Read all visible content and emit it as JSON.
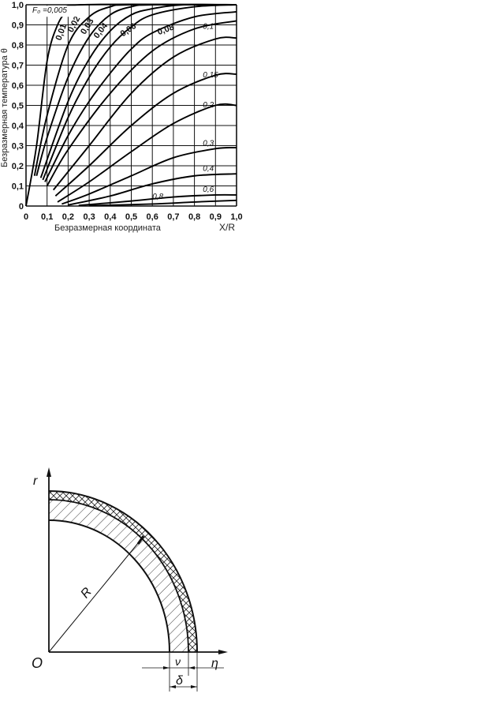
{
  "chart_data": {
    "type": "line",
    "title": "",
    "xlabel": "Безразмерная координата",
    "xunit_label": "X/R",
    "ylabel": "Безразмерная температура θ",
    "xlim": [
      0,
      1.0
    ],
    "ylim": [
      0,
      1.0
    ],
    "grid": true,
    "x_ticks": [
      "0",
      "0,1",
      "0,2",
      "0,3",
      "0,4",
      "0,5",
      "0,6",
      "0,7",
      "0,8",
      "0,9",
      "1,0"
    ],
    "y_ticks": [
      "0",
      "0,1",
      "0,2",
      "0,3",
      "0,4",
      "0,5",
      "0,6",
      "0,7",
      "0,8",
      "0,9",
      "1,0"
    ],
    "series": [
      {
        "name": "F₀ =0,005",
        "points": [
          [
            0,
            0
          ],
          [
            0.05,
            0.3
          ],
          [
            0.1,
            0.72
          ],
          [
            0.15,
            0.9
          ],
          [
            0.2,
            0.97
          ],
          [
            0.27,
            1.0
          ],
          [
            1,
            1.0
          ]
        ]
      },
      {
        "name": "0,01",
        "points": [
          [
            0.04,
            0.15
          ],
          [
            0.1,
            0.45
          ],
          [
            0.2,
            0.8
          ],
          [
            0.3,
            0.94
          ],
          [
            0.4,
            0.99
          ],
          [
            0.5,
            1.0
          ],
          [
            1,
            1.0
          ]
        ]
      },
      {
        "name": "0,02",
        "points": [
          [
            0.05,
            0.15
          ],
          [
            0.1,
            0.34
          ],
          [
            0.2,
            0.64
          ],
          [
            0.3,
            0.84
          ],
          [
            0.4,
            0.95
          ],
          [
            0.5,
            0.99
          ],
          [
            0.6,
            1.0
          ],
          [
            1,
            1.0
          ]
        ]
      },
      {
        "name": "0,03",
        "points": [
          [
            0.07,
            0.14
          ],
          [
            0.2,
            0.52
          ],
          [
            0.3,
            0.73
          ],
          [
            0.4,
            0.87
          ],
          [
            0.5,
            0.95
          ],
          [
            0.6,
            0.98
          ],
          [
            0.75,
            1.0
          ],
          [
            1,
            1.0
          ]
        ]
      },
      {
        "name": "0,04",
        "points": [
          [
            0.08,
            0.13
          ],
          [
            0.2,
            0.44
          ],
          [
            0.3,
            0.64
          ],
          [
            0.4,
            0.79
          ],
          [
            0.5,
            0.89
          ],
          [
            0.6,
            0.95
          ],
          [
            0.8,
            0.99
          ],
          [
            1,
            1.0
          ]
        ]
      },
      {
        "name": "0,06",
        "points": [
          [
            0.09,
            0.12
          ],
          [
            0.2,
            0.35
          ],
          [
            0.3,
            0.52
          ],
          [
            0.4,
            0.66
          ],
          [
            0.5,
            0.78
          ],
          [
            0.6,
            0.86
          ],
          [
            0.8,
            0.94
          ],
          [
            1,
            0.965
          ]
        ]
      },
      {
        "name": "0,08",
        "points": [
          [
            0.1,
            0.1
          ],
          [
            0.2,
            0.28
          ],
          [
            0.4,
            0.56
          ],
          [
            0.6,
            0.77
          ],
          [
            0.8,
            0.88
          ],
          [
            1,
            0.92
          ]
        ]
      },
      {
        "name": "0,1",
        "points": [
          [
            0.13,
            0.08
          ],
          [
            0.3,
            0.3
          ],
          [
            0.5,
            0.56
          ],
          [
            0.7,
            0.74
          ],
          [
            0.9,
            0.83
          ],
          [
            1,
            0.835
          ]
        ]
      },
      {
        "name": "0,15",
        "points": [
          [
            0.14,
            0.05
          ],
          [
            0.3,
            0.2
          ],
          [
            0.5,
            0.4
          ],
          [
            0.7,
            0.56
          ],
          [
            0.9,
            0.65
          ],
          [
            1,
            0.655
          ]
        ]
      },
      {
        "name": "0,2",
        "points": [
          [
            0.15,
            0.02
          ],
          [
            0.3,
            0.12
          ],
          [
            0.5,
            0.27
          ],
          [
            0.7,
            0.41
          ],
          [
            0.9,
            0.5
          ],
          [
            1,
            0.5
          ]
        ]
      },
      {
        "name": "0,3",
        "points": [
          [
            0.17,
            0.01
          ],
          [
            0.3,
            0.06
          ],
          [
            0.5,
            0.15
          ],
          [
            0.7,
            0.24
          ],
          [
            0.9,
            0.285
          ],
          [
            1,
            0.29
          ]
        ]
      },
      {
        "name": "0,4",
        "points": [
          [
            0.2,
            0.005
          ],
          [
            0.4,
            0.05
          ],
          [
            0.6,
            0.11
          ],
          [
            0.8,
            0.15
          ],
          [
            1,
            0.16
          ]
        ]
      },
      {
        "name": "0,6",
        "points": [
          [
            0.25,
            0.003
          ],
          [
            0.5,
            0.025
          ],
          [
            0.7,
            0.045
          ],
          [
            0.9,
            0.055
          ],
          [
            1,
            0.055
          ]
        ]
      },
      {
        "name": "0,8",
        "points": [
          [
            0.3,
            0.002
          ],
          [
            0.6,
            0.01
          ],
          [
            0.8,
            0.02
          ],
          [
            1,
            0.028
          ]
        ]
      }
    ]
  },
  "diagram": {
    "labels": {
      "r_axis": "r",
      "origin": "O",
      "radius": "R",
      "nu": "ν",
      "delta": "δ",
      "eta": "η"
    }
  }
}
